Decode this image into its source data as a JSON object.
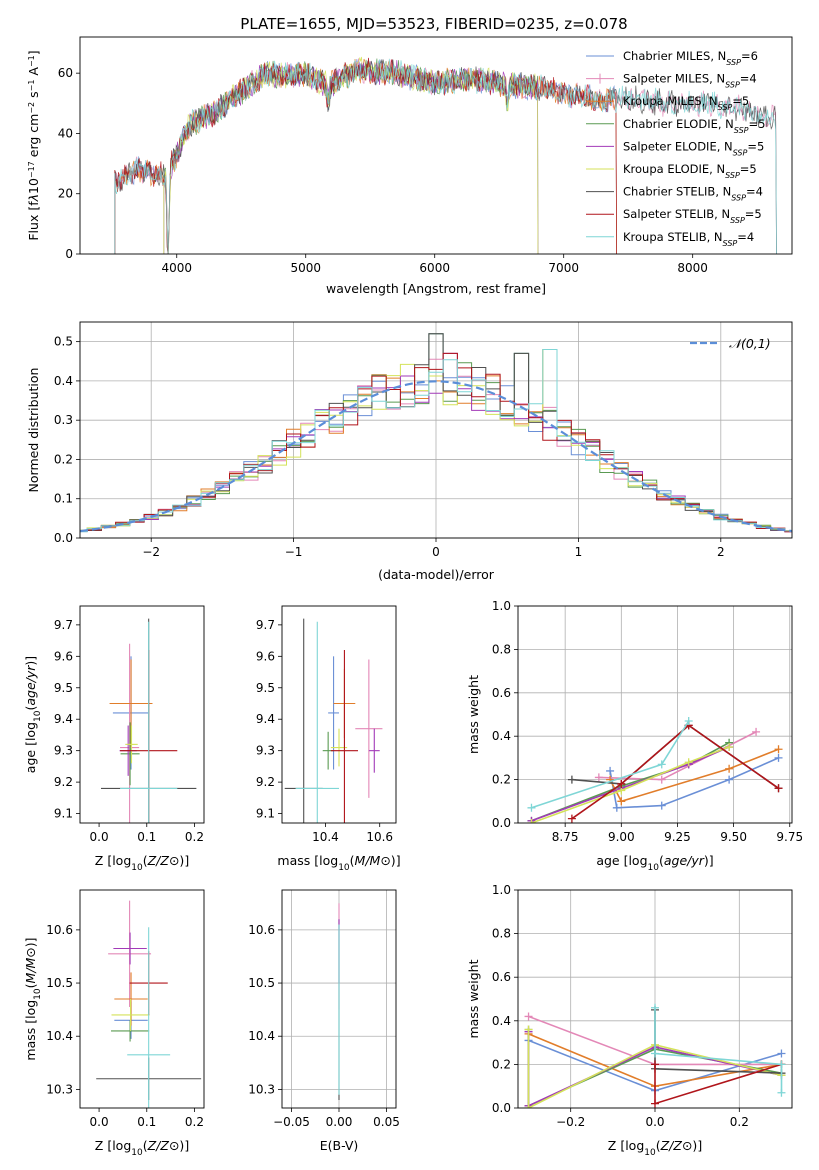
{
  "figure": {
    "title": "PLATE=1655, MJD=53523, FIBERID=0235, z=0.078"
  },
  "series_colors": {
    "Chabrier MILES": "#6a8fd6",
    "Salpeter MILES": "#e388b7",
    "Kroupa MILES": "#e17d2a",
    "Chabrier ELODIE": "#5a9a52",
    "Salpeter ELODIE": "#a23ab8",
    "Kroupa ELODIE": "#d4e25a",
    "Chabrier STELIB": "#505050",
    "Salpeter STELIB": "#b0151b",
    "Kroupa STELIB": "#7fd6d6"
  },
  "chart_data": [
    {
      "id": "spectrum",
      "type": "line",
      "xlabel": "wavelength [Angstrom, rest frame]",
      "ylabel_html": "Flux [f<tspan font-style='italic'>λ</tspan>10<tspan baseline-shift='super' font-size='8'>−17</tspan> erg cm<tspan baseline-shift='super' font-size='8'>−2</tspan> s<tspan baseline-shift='super' font-size='8'>−1</tspan> A<tspan baseline-shift='super' font-size='8'>−1</tspan>]",
      "xlim": [
        3250,
        8770
      ],
      "ylim": [
        0,
        72
      ],
      "xticks": [
        4000,
        5000,
        6000,
        7000,
        8000
      ],
      "yticks": [
        0,
        20,
        40,
        60
      ],
      "legend_position": "upper-right",
      "legend": [
        {
          "name": "Chabrier MILES",
          "label": "Chabrier MILES, N",
          "sub": "SSP",
          "tail": "=6",
          "marker": ""
        },
        {
          "name": "Salpeter MILES",
          "label": "Salpeter MILES, N",
          "sub": "SSP",
          "tail": "=4",
          "marker": "+"
        },
        {
          "name": "Kroupa MILES",
          "label": "Kroupa MILES, N",
          "sub": "SSP",
          "tail": "=5",
          "marker": "|"
        },
        {
          "name": "Chabrier ELODIE",
          "label": "Chabrier ELODIE, N",
          "sub": "SSP",
          "tail": "=5",
          "marker": ""
        },
        {
          "name": "Salpeter ELODIE",
          "label": "Salpeter ELODIE, N",
          "sub": "SSP",
          "tail": "=5",
          "marker": ""
        },
        {
          "name": "Kroupa ELODIE",
          "label": "Kroupa ELODIE, N",
          "sub": "SSP",
          "tail": "=5",
          "marker": ""
        },
        {
          "name": "Chabrier STELIB",
          "label": "Chabrier STELIB, N",
          "sub": "SSP",
          "tail": "=4",
          "marker": ""
        },
        {
          "name": "Salpeter STELIB",
          "label": "Salpeter STELIB, N",
          "sub": "SSP",
          "tail": "=5",
          "marker": ""
        },
        {
          "name": "Kroupa STELIB",
          "label": "Kroupa STELIB, N",
          "sub": "SSP",
          "tail": "=4",
          "marker": ""
        }
      ],
      "continuum_knots": [
        [
          3520,
          24
        ],
        [
          3700,
          28
        ],
        [
          3900,
          26
        ],
        [
          4000,
          33
        ],
        [
          4100,
          43
        ],
        [
          4300,
          47
        ],
        [
          4500,
          54
        ],
        [
          4700,
          60
        ],
        [
          4850,
          59
        ],
        [
          5000,
          60
        ],
        [
          5170,
          56
        ],
        [
          5400,
          61
        ],
        [
          5700,
          60
        ],
        [
          6000,
          57
        ],
        [
          6300,
          58
        ],
        [
          6600,
          56
        ],
        [
          6900,
          55
        ],
        [
          7000,
          53
        ],
        [
          7300,
          51
        ],
        [
          7500,
          52
        ],
        [
          7800,
          50
        ],
        [
          8100,
          50
        ],
        [
          8400,
          48
        ],
        [
          8600,
          45
        ]
      ],
      "series_ranges": {
        "Chabrier MILES": [
          3520,
          7410
        ],
        "Salpeter MILES": [
          3520,
          8650
        ],
        "Kroupa MILES": [
          3520,
          7410
        ],
        "Chabrier ELODIE": [
          3900,
          6800
        ],
        "Salpeter ELODIE": [
          3900,
          6800
        ],
        "Kroupa ELODIE": [
          3900,
          6800
        ],
        "Chabrier STELIB": [
          3520,
          8650
        ],
        "Salpeter STELIB": [
          3520,
          7410
        ],
        "Kroupa STELIB": [
          3520,
          8650
        ]
      },
      "dips": [
        [
          3933,
          30
        ],
        [
          5175,
          6
        ],
        [
          6563,
          6
        ]
      ]
    },
    {
      "id": "residuals",
      "type": "histogram",
      "xlabel": "(data-model)/error",
      "ylabel": "Normed distribution",
      "xlim": [
        -2.5,
        2.5
      ],
      "ylim": [
        0,
        0.55
      ],
      "xticks": [
        -2,
        -1,
        0,
        1,
        2
      ],
      "yticks": [
        0.0,
        0.1,
        0.2,
        0.3,
        0.4,
        0.5
      ],
      "bin_width": 0.1,
      "legend_position": "upper-right",
      "legend": [
        {
          "label": "𝒩(0,1)",
          "style": "dashed",
          "color": "#5b8ed8"
        }
      ],
      "reference_curve": "N(0,1)",
      "spikes": [
        [
          0.0,
          0.52
        ],
        [
          0.1,
          0.47
        ],
        [
          0.6,
          0.47
        ],
        [
          0.8,
          0.48
        ]
      ]
    },
    {
      "id": "age-vs-Z",
      "type": "errorbar",
      "xlabel": "Z [log10(Z/Z⊙)]",
      "ylabel": "age  [log10(age/yr)]",
      "xlim": [
        -0.04,
        0.22
      ],
      "ylim": [
        9.07,
        9.76
      ],
      "xticks": [
        0.0,
        0.1,
        0.2
      ],
      "yticks": [
        9.1,
        9.2,
        9.3,
        9.4,
        9.5,
        9.6,
        9.7
      ],
      "points": [
        {
          "series": "Chabrier MILES",
          "x": 0.067,
          "y": 9.42,
          "xerr": 0.038,
          "yerr": 0.18
        },
        {
          "series": "Salpeter MILES",
          "x": 0.064,
          "y": 9.31,
          "xerr": 0.02,
          "yerr": 0.33
        },
        {
          "series": "Kroupa MILES",
          "x": 0.067,
          "y": 9.45,
          "xerr": 0.045,
          "yerr": 0.14
        },
        {
          "series": "Chabrier ELODIE",
          "x": 0.065,
          "y": 9.29,
          "xerr": 0.02,
          "yerr": 0.1
        },
        {
          "series": "Salpeter ELODIE",
          "x": 0.061,
          "y": 9.3,
          "xerr": 0.018,
          "yerr": 0.08
        },
        {
          "series": "Kroupa ELODIE",
          "x": 0.068,
          "y": 9.32,
          "xerr": 0.013,
          "yerr": 0.06
        },
        {
          "series": "Chabrier STELIB",
          "x": 0.104,
          "y": 9.18,
          "xerr": 0.1,
          "yerr": 0.54
        },
        {
          "series": "Salpeter STELIB",
          "x": 0.104,
          "y": 9.3,
          "xerr": 0.06,
          "yerr": 0.32
        },
        {
          "series": "Kroupa STELIB",
          "x": 0.104,
          "y": 9.18,
          "xerr": 0.06,
          "yerr": 0.53
        }
      ]
    },
    {
      "id": "age-vs-mass",
      "type": "errorbar",
      "xlabel": "mass [log10(M/M⊙)]",
      "ylabel": "",
      "xlim": [
        10.24,
        10.66
      ],
      "ylim": [
        9.07,
        9.76
      ],
      "xticks": [
        10.4,
        10.6
      ],
      "yticks": [
        9.1,
        9.2,
        9.3,
        9.4,
        9.5,
        9.6,
        9.7
      ],
      "points": [
        {
          "series": "Chabrier MILES",
          "x": 10.43,
          "y": 9.42,
          "xerr": 0.02,
          "yerr": 0.18
        },
        {
          "series": "Salpeter MILES",
          "x": 10.56,
          "y": 9.37,
          "xerr": 0.05,
          "yerr": 0.22
        },
        {
          "series": "Kroupa MILES",
          "x": 10.47,
          "y": 9.45,
          "xerr": 0.04,
          "yerr": 0.11
        },
        {
          "series": "Chabrier ELODIE",
          "x": 10.41,
          "y": 9.3,
          "xerr": 0.02,
          "yerr": 0.06
        },
        {
          "series": "Salpeter ELODIE",
          "x": 10.58,
          "y": 9.3,
          "xerr": 0.02,
          "yerr": 0.07
        },
        {
          "series": "Kroupa ELODIE",
          "x": 10.45,
          "y": 9.31,
          "xerr": 0.03,
          "yerr": 0.06
        },
        {
          "series": "Chabrier STELIB",
          "x": 10.32,
          "y": 9.18,
          "xerr": 0.07,
          "yerr": 0.54
        },
        {
          "series": "Salpeter STELIB",
          "x": 10.47,
          "y": 9.3,
          "xerr": 0.05,
          "yerr": 0.32
        },
        {
          "series": "Kroupa STELIB",
          "x": 10.37,
          "y": 9.18,
          "xerr": 0.08,
          "yerr": 0.53
        }
      ]
    },
    {
      "id": "weight-vs-age",
      "type": "line",
      "xlabel": "age  [log10(age/yr)]",
      "ylabel": "mass weight",
      "xlim": [
        8.54,
        9.76
      ],
      "ylim": [
        0,
        1
      ],
      "xticks": [
        8.75,
        9.0,
        9.25,
        9.5,
        9.75
      ],
      "yticks": [
        0.0,
        0.2,
        0.4,
        0.6,
        0.8,
        1.0
      ],
      "series": [
        {
          "name": "Chabrier MILES",
          "x": [
            8.95,
            8.98,
            9.18,
            9.48,
            9.7
          ],
          "y": [
            0.24,
            0.07,
            0.08,
            0.2,
            0.3
          ]
        },
        {
          "name": "Salpeter MILES",
          "x": [
            8.9,
            9.18,
            9.6
          ],
          "y": [
            0.21,
            0.2,
            0.42
          ]
        },
        {
          "name": "Kroupa MILES",
          "x": [
            8.95,
            9.0,
            9.48,
            9.7
          ],
          "y": [
            0.2,
            0.1,
            0.25,
            0.34
          ]
        },
        {
          "name": "Chabrier ELODIE",
          "x": [
            8.6,
            9.0,
            9.3,
            9.48
          ],
          "y": [
            0.01,
            0.17,
            0.27,
            0.37
          ]
        },
        {
          "name": "Salpeter ELODIE",
          "x": [
            8.6,
            9.0,
            9.3,
            9.48
          ],
          "y": [
            0.01,
            0.16,
            0.27,
            0.35
          ]
        },
        {
          "name": "Kroupa ELODIE",
          "x": [
            8.6,
            9.0,
            9.3,
            9.48
          ],
          "y": [
            0.0,
            0.15,
            0.28,
            0.35
          ]
        },
        {
          "name": "Chabrier STELIB",
          "x": [
            8.78,
            9.0,
            9.3,
            9.7
          ],
          "y": [
            0.2,
            0.18,
            0.45,
            0.16
          ]
        },
        {
          "name": "Salpeter STELIB",
          "x": [
            8.78,
            9.0,
            9.3,
            9.7
          ],
          "y": [
            0.02,
            0.18,
            0.45,
            0.16
          ]
        },
        {
          "name": "Kroupa STELIB",
          "x": [
            8.6,
            9.18,
            9.3
          ],
          "y": [
            0.07,
            0.27,
            0.47
          ]
        }
      ]
    },
    {
      "id": "mass-vs-Z",
      "type": "errorbar",
      "xlabel": "Z [log10(Z/Z⊙)]",
      "ylabel": "mass [log10(M/M⊙)]",
      "xlim": [
        -0.04,
        0.22
      ],
      "ylim": [
        10.265,
        10.675
      ],
      "xticks": [
        0.0,
        0.1,
        0.2
      ],
      "yticks": [
        10.3,
        10.4,
        10.5,
        10.6
      ],
      "points": [
        {
          "series": "Chabrier MILES",
          "x": 0.067,
          "y": 10.43,
          "xerr": 0.035,
          "yerr": 0.035
        },
        {
          "series": "Salpeter MILES",
          "x": 0.064,
          "y": 10.555,
          "xerr": 0.045,
          "yerr": 0.1
        },
        {
          "series": "Kroupa MILES",
          "x": 0.067,
          "y": 10.47,
          "xerr": 0.035,
          "yerr": 0.05
        },
        {
          "series": "Chabrier ELODIE",
          "x": 0.065,
          "y": 10.41,
          "xerr": 0.04,
          "yerr": 0.02
        },
        {
          "series": "Salpeter ELODIE",
          "x": 0.065,
          "y": 10.565,
          "xerr": 0.035,
          "yerr": 0.03
        },
        {
          "series": "Kroupa ELODIE",
          "x": 0.066,
          "y": 10.44,
          "xerr": 0.04,
          "yerr": 0.03
        },
        {
          "series": "Chabrier STELIB",
          "x": 0.104,
          "y": 10.32,
          "xerr": 0.11,
          "yerr": 0.04
        },
        {
          "series": "Salpeter STELIB",
          "x": 0.104,
          "y": 10.5,
          "xerr": 0.04,
          "yerr": 0.06
        },
        {
          "series": "Kroupa STELIB",
          "x": 0.104,
          "y": 10.365,
          "xerr": 0.045,
          "yerr": 0.24
        }
      ]
    },
    {
      "id": "mass-vs-ebv",
      "type": "errorbar",
      "xlabel": "E(B-V)",
      "ylabel": "",
      "xlim": [
        -0.06,
        0.06
      ],
      "ylim": [
        10.265,
        10.675
      ],
      "xticks": [
        -0.05,
        0.0,
        0.05
      ],
      "yticks": [
        10.3,
        10.4,
        10.5,
        10.6
      ],
      "points": [
        {
          "series": "Chabrier STELIB",
          "x": 0.0,
          "y": 10.45,
          "xerr": 0.0,
          "yerr": 0.17
        },
        {
          "series": "Salpeter MILES",
          "x": 0.0,
          "y": 10.55,
          "xerr": 0.0,
          "yerr": 0.1
        },
        {
          "series": "Salpeter ELODIE",
          "x": 0.0,
          "y": 10.56,
          "xerr": 0.0,
          "yerr": 0.06
        },
        {
          "series": "Kroupa STELIB",
          "x": 0.0,
          "y": 10.45,
          "xerr": 0.0,
          "yerr": 0.16
        }
      ]
    },
    {
      "id": "weight-vs-Z",
      "type": "line",
      "xlabel": "Z [log10(Z/Z⊙)]",
      "ylabel": "mass weight",
      "xlim": [
        -0.325,
        0.325
      ],
      "ylim": [
        0,
        1
      ],
      "xticks": [
        -0.2,
        0.0,
        0.2
      ],
      "yticks": [
        0.0,
        0.2,
        0.4,
        0.6,
        0.8,
        1.0
      ],
      "series": [
        {
          "name": "Chabrier MILES",
          "x": [
            -0.3,
            0.0,
            0.3
          ],
          "y": [
            0.31,
            0.08,
            0.25
          ]
        },
        {
          "name": "Salpeter MILES",
          "x": [
            -0.3,
            0.0,
            0.3
          ],
          "y": [
            0.42,
            0.2,
            0.2
          ]
        },
        {
          "name": "Kroupa MILES",
          "x": [
            -0.3,
            0.0,
            0.3
          ],
          "y": [
            0.34,
            0.1,
            0.2
          ]
        },
        {
          "name": "Chabrier ELODIE",
          "x": [
            -0.3,
            -0.3,
            0.0,
            0.3
          ],
          "y": [
            0.36,
            0.01,
            0.27,
            0.16
          ]
        },
        {
          "name": "Salpeter ELODIE",
          "x": [
            -0.3,
            -0.3,
            0.0,
            0.3
          ],
          "y": [
            0.35,
            0.01,
            0.28,
            0.15
          ]
        },
        {
          "name": "Kroupa ELODIE",
          "x": [
            -0.3,
            -0.3,
            0.0,
            0.3
          ],
          "y": [
            0.36,
            0.0,
            0.29,
            0.15
          ]
        },
        {
          "name": "Chabrier STELIB",
          "x": [
            0.0,
            0.0,
            0.3
          ],
          "y": [
            0.45,
            0.18,
            0.16
          ]
        },
        {
          "name": "Salpeter STELIB",
          "x": [
            0.0,
            0.0,
            0.3
          ],
          "y": [
            0.2,
            0.02,
            0.2
          ]
        },
        {
          "name": "Kroupa STELIB",
          "x": [
            0.0,
            0.0,
            0.3,
            0.3
          ],
          "y": [
            0.46,
            0.25,
            0.2,
            0.07
          ]
        }
      ]
    }
  ]
}
